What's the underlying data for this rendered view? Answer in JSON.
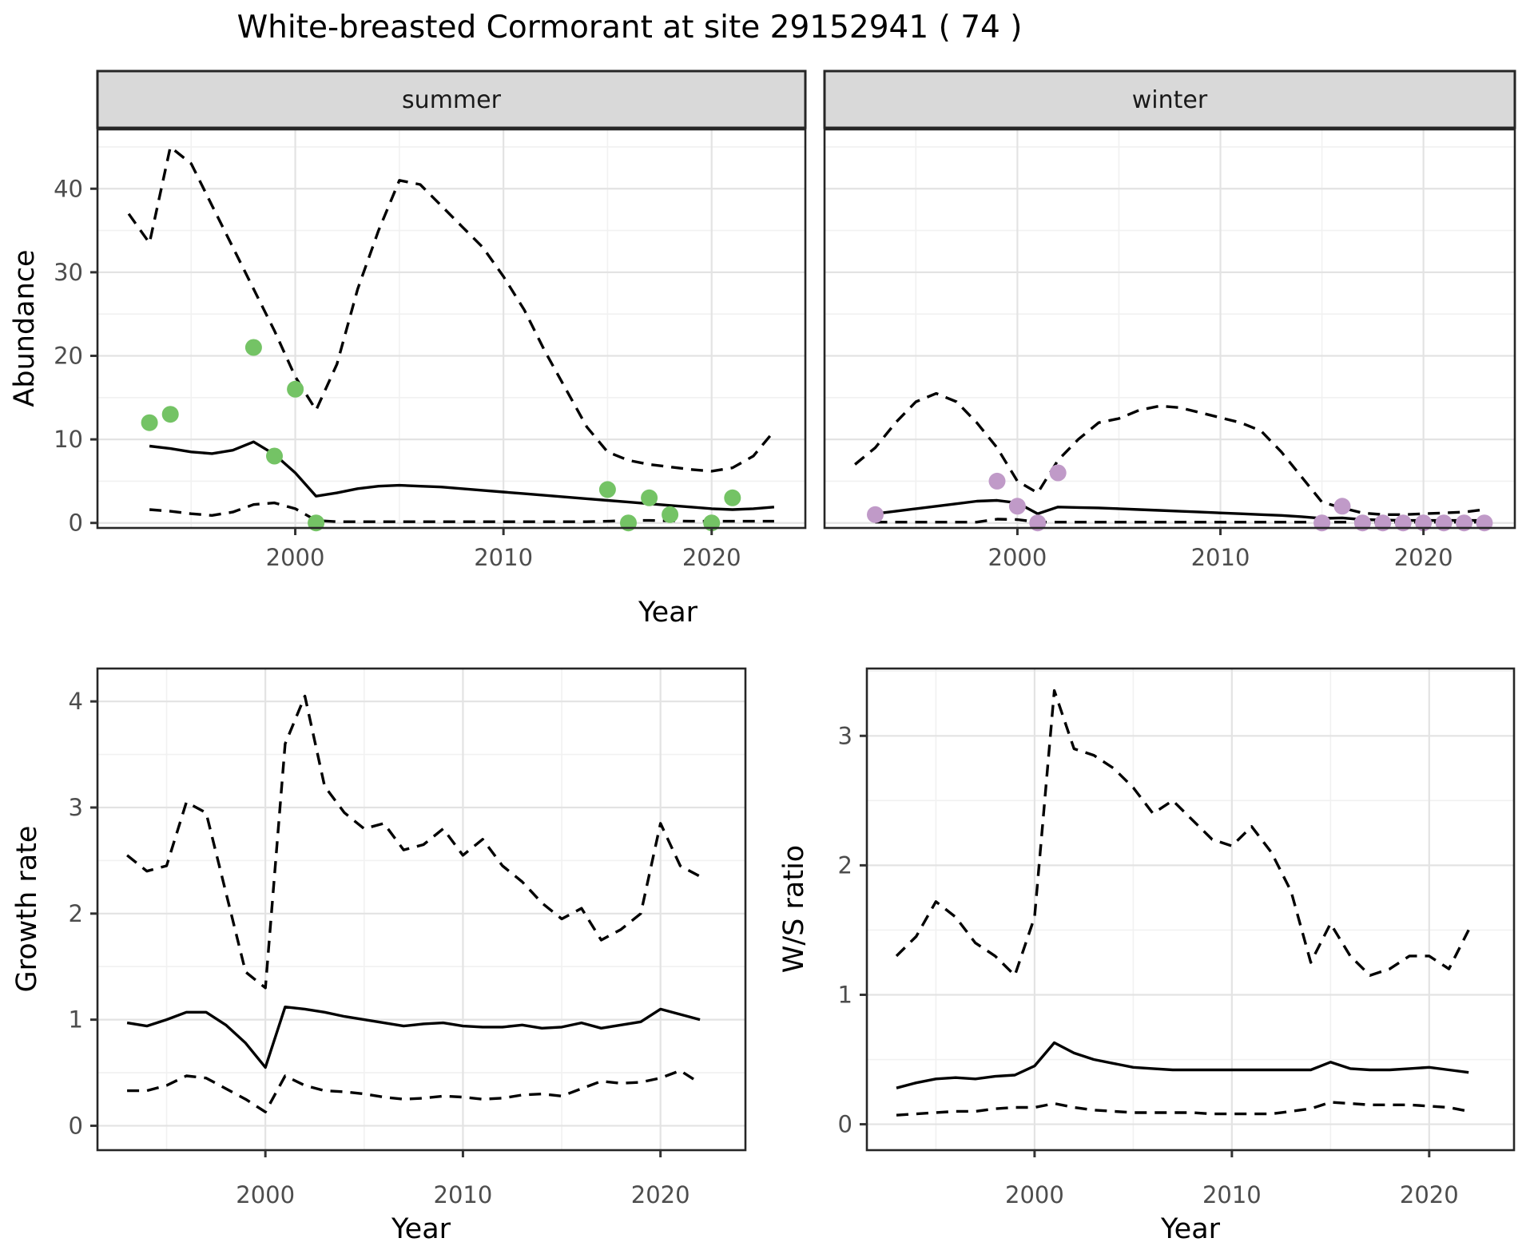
{
  "title": "White-breasted Cormorant at site 29152941 ( 74 )",
  "colors": {
    "summer_point": "#74c365",
    "winter_point": "#c09ac8",
    "line": "#000000",
    "grid_major": "#e3e3e3",
    "grid_minor": "#f1f1f1",
    "strip_bg": "#d9d9d9",
    "panel_border": "#262626",
    "axis_text": "#4d4d4d",
    "background": "#ffffff"
  },
  "chart_data": [
    {
      "id": "abundance-summer",
      "type": "line",
      "facet": "summer",
      "xlabel": "Year",
      "ylabel": "Abundance",
      "xlim": [
        1990.5,
        2024.5
      ],
      "ylim": [
        -0.6,
        47.1
      ],
      "xticks": [
        2000,
        2010,
        2020
      ],
      "xminor": [
        1995,
        2005,
        2015
      ],
      "yticks": [
        0,
        10,
        20,
        30,
        40
      ],
      "yminor": [
        5,
        15,
        25,
        35,
        45
      ],
      "grid": true,
      "legend": "none",
      "series": [
        {
          "name": "upper_ci",
          "style": "dashed",
          "x": [
            1992,
            1993,
            1994,
            1995,
            1996,
            1997,
            1998,
            1999,
            2000,
            2001,
            2002,
            2003,
            2004,
            2005,
            2006,
            2007,
            2008,
            2009,
            2010,
            2011,
            2012,
            2013,
            2014,
            2015,
            2016,
            2017,
            2018,
            2019,
            2020,
            2021,
            2022,
            2023
          ],
          "y": [
            37,
            33.5,
            45,
            43,
            38,
            33,
            28,
            23,
            17.5,
            13.5,
            19,
            28,
            35,
            41,
            40.5,
            38,
            35.5,
            33,
            29.5,
            25.5,
            20.5,
            16,
            11.5,
            8.5,
            7.5,
            7,
            6.7,
            6.4,
            6.2,
            6.6,
            8,
            11
          ]
        },
        {
          "name": "lower_ci",
          "style": "dashed",
          "x": [
            1993,
            1994,
            1995,
            1996,
            1997,
            1998,
            1999,
            2000,
            2001,
            2002,
            2003,
            2004,
            2005,
            2006,
            2007,
            2008,
            2009,
            2010,
            2011,
            2012,
            2013,
            2014,
            2015,
            2016,
            2017,
            2018,
            2019,
            2020,
            2021,
            2022,
            2023
          ],
          "y": [
            1.6,
            1.4,
            1.1,
            0.9,
            1.3,
            2.2,
            2.4,
            1.7,
            0.3,
            0.15,
            0.15,
            0.15,
            0.15,
            0.15,
            0.15,
            0.15,
            0.15,
            0.15,
            0.15,
            0.15,
            0.15,
            0.15,
            0.2,
            0.3,
            0.3,
            0.25,
            0.2,
            0.2,
            0.2,
            0.2,
            0.2
          ]
        },
        {
          "name": "median",
          "style": "solid",
          "x": [
            1993,
            1994,
            1995,
            1996,
            1997,
            1998,
            1999,
            2000,
            2001,
            2002,
            2003,
            2004,
            2005,
            2006,
            2007,
            2008,
            2009,
            2010,
            2011,
            2012,
            2013,
            2014,
            2015,
            2016,
            2017,
            2018,
            2019,
            2020,
            2021,
            2022,
            2023
          ],
          "y": [
            9.2,
            8.9,
            8.5,
            8.3,
            8.7,
            9.7,
            8.2,
            6,
            3.2,
            3.6,
            4.1,
            4.4,
            4.5,
            4.4,
            4.3,
            4.1,
            3.9,
            3.7,
            3.5,
            3.3,
            3.1,
            2.9,
            2.7,
            2.5,
            2.3,
            2.1,
            1.9,
            1.7,
            1.6,
            1.7,
            1.9
          ]
        }
      ],
      "points": {
        "name": "observed-counts",
        "color": "#74c365",
        "x": [
          1993,
          1994,
          1998,
          1999,
          2000,
          2001,
          2015,
          2016,
          2017,
          2018,
          2020,
          2021
        ],
        "y": [
          12,
          13,
          21,
          8,
          16,
          0,
          4,
          0,
          3,
          1,
          0,
          3
        ]
      }
    },
    {
      "id": "abundance-winter",
      "type": "line",
      "facet": "winter",
      "xlabel": "Year",
      "ylabel": "Abundance",
      "xlim": [
        1990.5,
        2024.5
      ],
      "ylim": [
        -0.6,
        47.1
      ],
      "xticks": [
        2000,
        2010,
        2020
      ],
      "xminor": [
        1995,
        2005,
        2015
      ],
      "yticks": [
        0,
        10,
        20,
        30,
        40
      ],
      "yminor": [
        5,
        15,
        25,
        35,
        45
      ],
      "grid": true,
      "legend": "none",
      "series": [
        {
          "name": "upper_ci",
          "style": "dashed",
          "x": [
            1992,
            1993,
            1994,
            1995,
            1996,
            1997,
            1998,
            1999,
            2000,
            2001,
            2002,
            2003,
            2004,
            2005,
            2006,
            2007,
            2008,
            2009,
            2010,
            2011,
            2012,
            2013,
            2014,
            2015,
            2016,
            2017,
            2018,
            2019,
            2020,
            2021,
            2022,
            2023
          ],
          "y": [
            7,
            9,
            12,
            14.5,
            15.5,
            14.5,
            12,
            9,
            5,
            3.6,
            7.5,
            10,
            12,
            12.5,
            13.5,
            14,
            13.8,
            13.2,
            12.6,
            12,
            11,
            8.5,
            5.5,
            2.5,
            1.8,
            1.2,
            1,
            1,
            1.1,
            1.2,
            1.3,
            1.6
          ]
        },
        {
          "name": "lower_ci",
          "style": "dashed",
          "x": [
            1993,
            1994,
            1995,
            1996,
            1997,
            1998,
            1999,
            2000,
            2001,
            2002,
            2003,
            2004,
            2005,
            2006,
            2007,
            2008,
            2009,
            2010,
            2011,
            2012,
            2013,
            2014,
            2015,
            2016,
            2017,
            2018,
            2019,
            2020,
            2021,
            2022,
            2023
          ],
          "y": [
            0.1,
            0.1,
            0.1,
            0.1,
            0.1,
            0.1,
            0.45,
            0.4,
            0.1,
            0.1,
            0.1,
            0.1,
            0.1,
            0.1,
            0.1,
            0.1,
            0.1,
            0.1,
            0.1,
            0.1,
            0.1,
            0.1,
            0.1,
            0.1,
            0.1,
            0.1,
            0.1,
            0.1,
            0.1,
            0.1,
            0.1
          ]
        },
        {
          "name": "median",
          "style": "solid",
          "x": [
            1993,
            1994,
            1995,
            1996,
            1997,
            1998,
            1999,
            2000,
            2001,
            2002,
            2003,
            2004,
            2005,
            2006,
            2007,
            2008,
            2009,
            2010,
            2011,
            2012,
            2013,
            2014,
            2015,
            2016,
            2017,
            2018,
            2019,
            2020,
            2021,
            2022,
            2023
          ],
          "y": [
            1.1,
            1.4,
            1.7,
            2,
            2.3,
            2.6,
            2.7,
            2.4,
            1.1,
            1.9,
            1.85,
            1.8,
            1.7,
            1.6,
            1.5,
            1.4,
            1.3,
            1.2,
            1.1,
            1,
            0.9,
            0.75,
            0.55,
            0.6,
            0.4,
            0.35,
            0.3,
            0.3,
            0.3,
            0.3,
            0.3
          ]
        }
      ],
      "points": {
        "name": "observed-counts",
        "color": "#c09ac8",
        "x": [
          1993,
          1999,
          2000,
          2001,
          2002,
          2015,
          2016,
          2017,
          2018,
          2019,
          2020,
          2021,
          2022,
          2023
        ],
        "y": [
          1,
          5,
          2,
          0,
          6,
          0,
          2,
          0,
          0,
          0,
          0,
          0,
          0,
          0
        ]
      }
    },
    {
      "id": "growth-rate",
      "type": "line",
      "facet": "",
      "xlabel": "Year",
      "ylabel": "Growth rate",
      "xlim": [
        1991.5,
        2024.3
      ],
      "ylim": [
        -0.23,
        4.31
      ],
      "xticks": [
        2000,
        2010,
        2020
      ],
      "xminor": [
        1995,
        2005,
        2015
      ],
      "yticks": [
        0,
        1,
        2,
        3,
        4
      ],
      "yminor": [
        0.5,
        1.5,
        2.5,
        3.5
      ],
      "grid": true,
      "legend": "none",
      "series": [
        {
          "name": "upper_ci",
          "style": "dashed",
          "x": [
            1993,
            1994,
            1995,
            1996,
            1997,
            1998,
            1999,
            2000,
            2001,
            2002,
            2003,
            2004,
            2005,
            2006,
            2007,
            2008,
            2009,
            2010,
            2011,
            2012,
            2013,
            2014,
            2015,
            2016,
            2017,
            2018,
            2019,
            2020,
            2021,
            2022
          ],
          "y": [
            2.55,
            2.4,
            2.45,
            3.05,
            2.95,
            2.2,
            1.45,
            1.3,
            3.6,
            4.05,
            3.2,
            2.95,
            2.8,
            2.85,
            2.6,
            2.65,
            2.8,
            2.55,
            2.7,
            2.45,
            2.3,
            2.1,
            1.95,
            2.05,
            1.75,
            1.85,
            2,
            2.85,
            2.45,
            2.35
          ]
        },
        {
          "name": "lower_ci",
          "style": "dashed",
          "x": [
            1993,
            1994,
            1995,
            1996,
            1997,
            1998,
            1999,
            2000,
            2001,
            2002,
            2003,
            2004,
            2005,
            2006,
            2007,
            2008,
            2009,
            2010,
            2011,
            2012,
            2013,
            2014,
            2015,
            2016,
            2017,
            2018,
            2019,
            2020,
            2021,
            2022
          ],
          "y": [
            0.33,
            0.33,
            0.38,
            0.47,
            0.45,
            0.35,
            0.25,
            0.13,
            0.47,
            0.38,
            0.33,
            0.32,
            0.3,
            0.27,
            0.25,
            0.26,
            0.28,
            0.27,
            0.25,
            0.26,
            0.29,
            0.3,
            0.28,
            0.35,
            0.42,
            0.4,
            0.41,
            0.45,
            0.52,
            0.4
          ]
        },
        {
          "name": "median",
          "style": "solid",
          "x": [
            1993,
            1994,
            1995,
            1996,
            1997,
            1998,
            1999,
            2000,
            2001,
            2002,
            2003,
            2004,
            2005,
            2006,
            2007,
            2008,
            2009,
            2010,
            2011,
            2012,
            2013,
            2014,
            2015,
            2016,
            2017,
            2018,
            2019,
            2020,
            2021,
            2022
          ],
          "y": [
            0.97,
            0.94,
            1,
            1.07,
            1.07,
            0.95,
            0.78,
            0.55,
            1.12,
            1.1,
            1.07,
            1.03,
            1,
            0.97,
            0.94,
            0.96,
            0.97,
            0.94,
            0.93,
            0.93,
            0.95,
            0.92,
            0.93,
            0.97,
            0.92,
            0.95,
            0.98,
            1.1,
            1.05,
            1
          ]
        }
      ],
      "points": null
    },
    {
      "id": "ws-ratio",
      "type": "line",
      "facet": "",
      "xlabel": "Year",
      "ylabel": "W/S ratio",
      "xlim": [
        1991.5,
        2024.3
      ],
      "ylim": [
        -0.2,
        3.52
      ],
      "xticks": [
        2000,
        2010,
        2020
      ],
      "xminor": [
        1995,
        2005,
        2015
      ],
      "yticks": [
        0,
        1,
        2,
        3
      ],
      "yminor": [
        0.5,
        1.5,
        2.5,
        3.5
      ],
      "grid": true,
      "legend": "none",
      "series": [
        {
          "name": "upper_ci",
          "style": "dashed",
          "x": [
            1993,
            1994,
            1995,
            1996,
            1997,
            1998,
            1999,
            2000,
            2001,
            2002,
            2003,
            2004,
            2005,
            2006,
            2007,
            2008,
            2009,
            2010,
            2011,
            2012,
            2013,
            2014,
            2015,
            2016,
            2017,
            2018,
            2019,
            2020,
            2021,
            2022
          ],
          "y": [
            1.3,
            1.45,
            1.72,
            1.6,
            1.4,
            1.3,
            1.15,
            1.6,
            3.35,
            2.9,
            2.85,
            2.75,
            2.6,
            2.4,
            2.5,
            2.35,
            2.2,
            2.15,
            2.3,
            2.1,
            1.8,
            1.25,
            1.55,
            1.3,
            1.15,
            1.2,
            1.3,
            1.3,
            1.2,
            1.5
          ]
        },
        {
          "name": "lower_ci",
          "style": "dashed",
          "x": [
            1993,
            1994,
            1995,
            1996,
            1997,
            1998,
            1999,
            2000,
            2001,
            2002,
            2003,
            2004,
            2005,
            2006,
            2007,
            2008,
            2009,
            2010,
            2011,
            2012,
            2013,
            2014,
            2015,
            2016,
            2017,
            2018,
            2019,
            2020,
            2021,
            2022
          ],
          "y": [
            0.07,
            0.08,
            0.09,
            0.1,
            0.1,
            0.12,
            0.13,
            0.13,
            0.16,
            0.13,
            0.11,
            0.1,
            0.09,
            0.09,
            0.09,
            0.09,
            0.08,
            0.08,
            0.08,
            0.08,
            0.1,
            0.12,
            0.17,
            0.16,
            0.15,
            0.15,
            0.15,
            0.14,
            0.13,
            0.1
          ]
        },
        {
          "name": "median",
          "style": "solid",
          "x": [
            1993,
            1994,
            1995,
            1996,
            1997,
            1998,
            1999,
            2000,
            2001,
            2002,
            2003,
            2004,
            2005,
            2006,
            2007,
            2008,
            2009,
            2010,
            2011,
            2012,
            2013,
            2014,
            2015,
            2016,
            2017,
            2018,
            2019,
            2020,
            2021,
            2022
          ],
          "y": [
            0.28,
            0.32,
            0.35,
            0.36,
            0.35,
            0.37,
            0.38,
            0.45,
            0.63,
            0.55,
            0.5,
            0.47,
            0.44,
            0.43,
            0.42,
            0.42,
            0.42,
            0.42,
            0.42,
            0.42,
            0.42,
            0.42,
            0.48,
            0.43,
            0.42,
            0.42,
            0.43,
            0.44,
            0.42,
            0.4
          ]
        }
      ],
      "points": null
    }
  ]
}
